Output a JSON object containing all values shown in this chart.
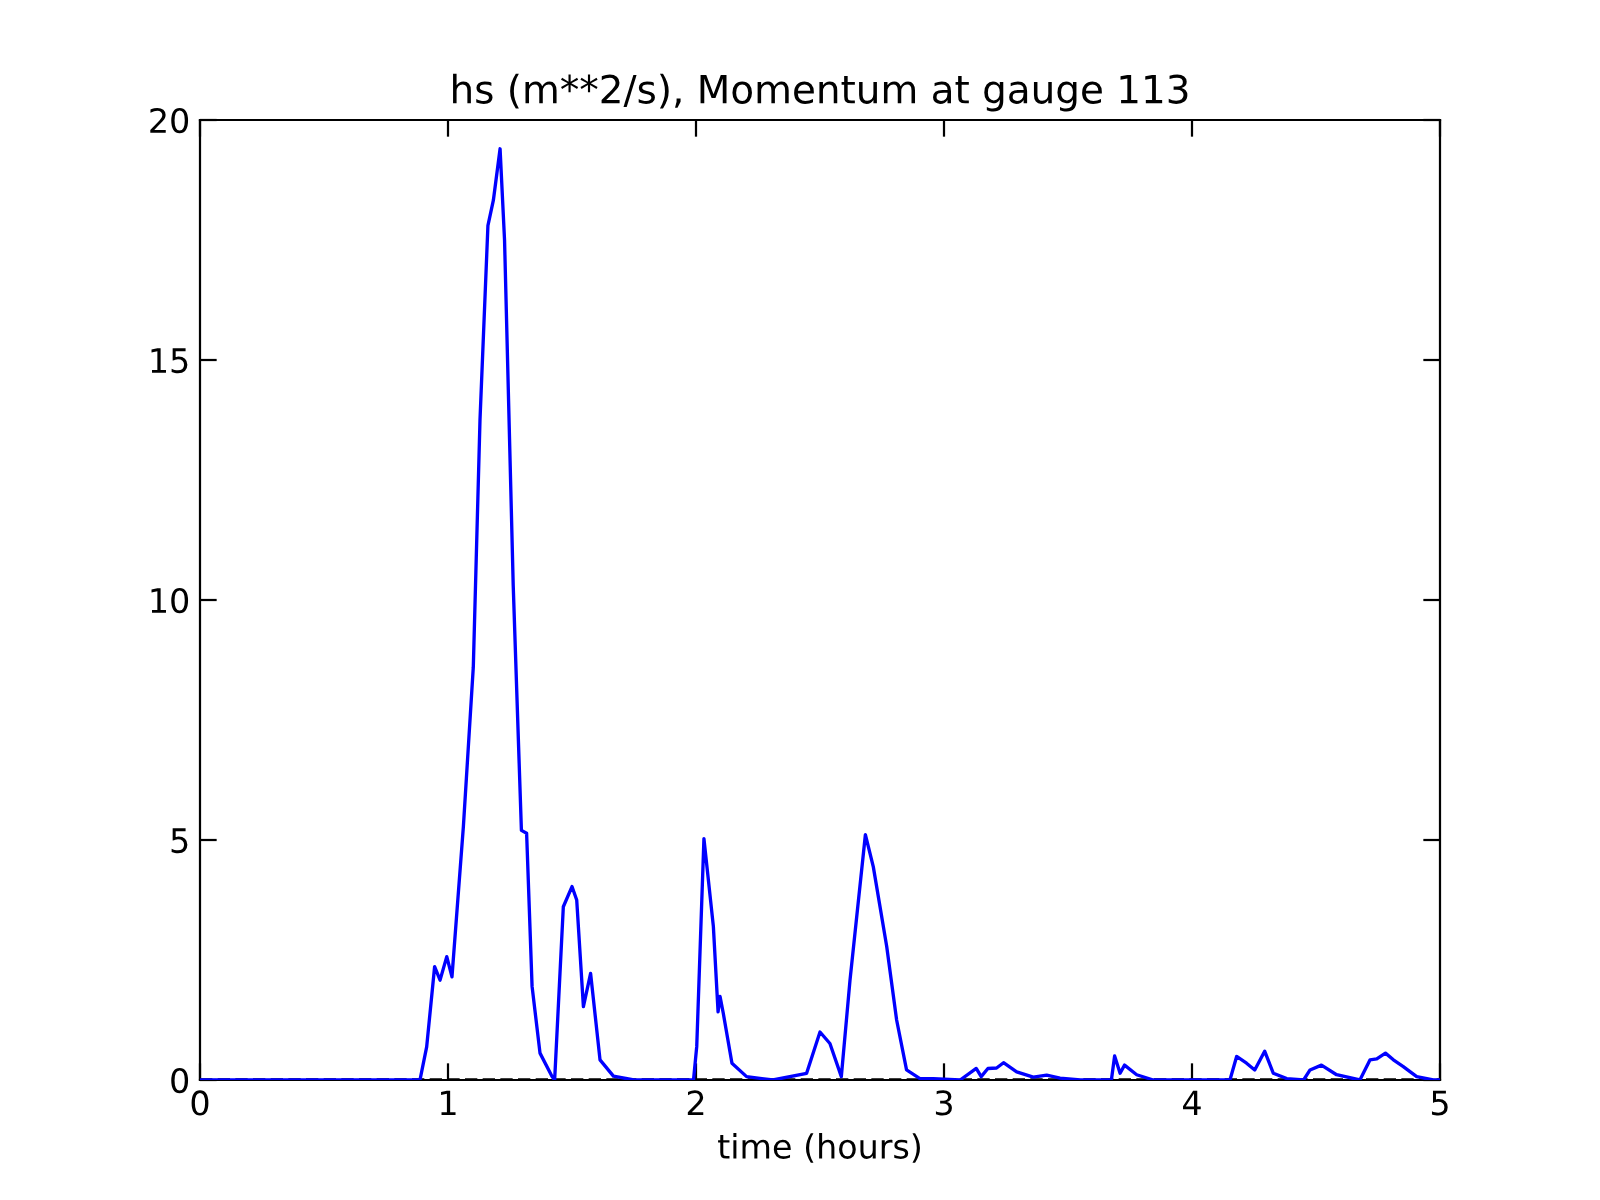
{
  "chart_data": {
    "type": "line",
    "title": "hs (m**2/s), Momentum at gauge 113",
    "xlabel": "time (hours)",
    "x": [
      0,
      0.887,
      0.914,
      0.946,
      0.968,
      0.995,
      1.016,
      1.062,
      1.102,
      1.129,
      1.161,
      1.183,
      1.21,
      1.228,
      1.263,
      1.296,
      1.317,
      1.339,
      1.371,
      1.419,
      1.43,
      1.465,
      1.5,
      1.519,
      1.546,
      1.575,
      1.613,
      1.667,
      1.75,
      1.99,
      2.003,
      2.032,
      2.07,
      2.089,
      2.097,
      2.11,
      2.145,
      2.204,
      2.31,
      2.446,
      2.5,
      2.54,
      2.586,
      2.621,
      2.683,
      2.715,
      2.769,
      2.809,
      2.849,
      2.903,
      2.957,
      3.065,
      3.13,
      3.15,
      3.177,
      3.212,
      3.24,
      3.293,
      3.36,
      3.414,
      3.468,
      3.55,
      3.675,
      3.688,
      3.71,
      3.728,
      3.777,
      3.844,
      4.153,
      4.18,
      4.22,
      4.253,
      4.293,
      4.328,
      4.382,
      4.45,
      4.476,
      4.522,
      4.583,
      4.677,
      4.718,
      4.745,
      4.78,
      4.812,
      4.852,
      4.906,
      4.973,
      5
    ],
    "series": [
      {
        "color": "#0000ff",
        "values": [
          0,
          0,
          0.69,
          2.36,
          2.08,
          2.57,
          2.15,
          5.28,
          8.6,
          13.75,
          17.8,
          18.33,
          19.4,
          17.5,
          10.3,
          5.2,
          5.14,
          1.95,
          0.56,
          0.08,
          0,
          3.61,
          4.03,
          3.75,
          1.53,
          2.22,
          0.42,
          0.08,
          0,
          0,
          0.7,
          5.03,
          3.2,
          1.42,
          1.74,
          1.39,
          0.35,
          0.07,
          0,
          0.14,
          1.0,
          0.76,
          0.07,
          2.08,
          5.11,
          4.44,
          2.78,
          1.25,
          0.21,
          0.03,
          0.03,
          0,
          0.24,
          0.07,
          0.24,
          0.25,
          0.36,
          0.17,
          0.06,
          0.1,
          0.04,
          0,
          0,
          0.5,
          0.14,
          0.31,
          0.11,
          0,
          0,
          0.49,
          0.35,
          0.21,
          0.6,
          0.14,
          0.03,
          0,
          0.21,
          0.31,
          0.11,
          0,
          0.42,
          0.44,
          0.56,
          0.42,
          0.28,
          0.07,
          0,
          0
        ]
      }
    ],
    "ref_lines": [
      {
        "axis": "y",
        "value": 0,
        "color": "#000000",
        "line_style": "dashed"
      }
    ],
    "xlim": [
      0,
      5
    ],
    "xticks": [
      0,
      1,
      2,
      3,
      4,
      5
    ],
    "ylim": [
      0,
      20
    ],
    "yticks": [
      0,
      5,
      10,
      15,
      20
    ],
    "line_style": "solid",
    "marker": "none",
    "grid": false,
    "legend": false
  }
}
